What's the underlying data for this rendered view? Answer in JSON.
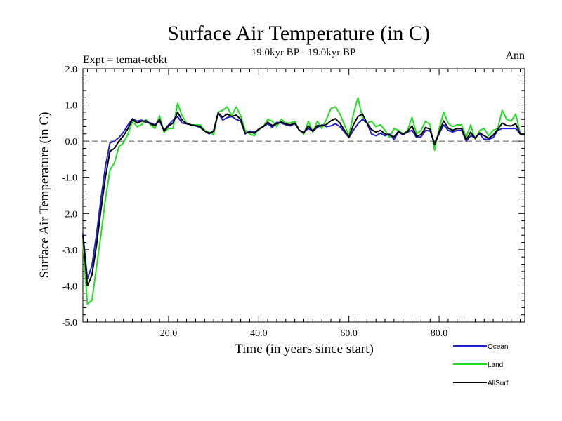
{
  "chart_data": {
    "type": "line",
    "title": "Surface Air Temperature (in C)",
    "subtitle": "19.0kyr BP - 19.0kyr BP",
    "left_label": "Expt = temat-tebkt",
    "right_label": "Ann",
    "xlabel": "Time (in years since start)",
    "ylabel": "Surface Air Temperature (in C)",
    "xlim": [
      1,
      99
    ],
    "ylim": [
      -5.0,
      2.0
    ],
    "x_ticks": [
      20,
      40,
      60,
      80
    ],
    "x_tick_labels": [
      "20.0",
      "40.0",
      "60.0",
      "80.0"
    ],
    "y_ticks": [
      -5,
      -4,
      -3,
      -2,
      -1,
      0,
      1,
      2
    ],
    "y_tick_labels": [
      "-5.0",
      "-4.0",
      "-3.0",
      "-2.0",
      "-1.0",
      "0.0",
      "1.0",
      "2.0"
    ],
    "reference_line": 0.0,
    "x": [
      1,
      2,
      3,
      4,
      5,
      6,
      7,
      8,
      9,
      10,
      11,
      12,
      13,
      14,
      15,
      16,
      17,
      18,
      19,
      20,
      21,
      22,
      23,
      24,
      25,
      26,
      27,
      28,
      29,
      30,
      31,
      32,
      33,
      34,
      35,
      36,
      37,
      38,
      39,
      40,
      41,
      42,
      43,
      44,
      45,
      46,
      47,
      48,
      49,
      50,
      51,
      52,
      53,
      54,
      55,
      56,
      57,
      58,
      59,
      60,
      61,
      62,
      63,
      64,
      65,
      66,
      67,
      68,
      69,
      70,
      71,
      72,
      73,
      74,
      75,
      76,
      77,
      78,
      79,
      80,
      81,
      82,
      83,
      84,
      85,
      86,
      87,
      88,
      89,
      90,
      91,
      92,
      93,
      94,
      95,
      96,
      97,
      98,
      99
    ],
    "series": [
      {
        "name": "Ocean",
        "color": "#2020d0",
        "values": [
          -2.55,
          -3.8,
          -3.45,
          -2.6,
          -1.6,
          -0.7,
          -0.05,
          0.0,
          0.1,
          0.25,
          0.45,
          0.62,
          0.55,
          0.58,
          0.52,
          0.5,
          0.45,
          0.55,
          0.3,
          0.45,
          0.58,
          0.68,
          0.5,
          0.48,
          0.45,
          0.42,
          0.38,
          0.28,
          0.2,
          0.3,
          0.78,
          0.58,
          0.65,
          0.68,
          0.6,
          0.55,
          0.2,
          0.28,
          0.25,
          0.32,
          0.4,
          0.48,
          0.38,
          0.52,
          0.5,
          0.45,
          0.42,
          0.48,
          0.3,
          0.25,
          0.35,
          0.28,
          0.38,
          0.45,
          0.4,
          0.42,
          0.48,
          0.4,
          0.25,
          0.1,
          0.3,
          0.48,
          0.6,
          0.5,
          0.2,
          0.15,
          0.22,
          0.15,
          0.2,
          0.05,
          0.25,
          0.18,
          0.25,
          0.3,
          0.1,
          0.12,
          0.3,
          0.28,
          -0.05,
          0.2,
          0.45,
          0.3,
          0.25,
          0.3,
          0.3,
          0.0,
          0.15,
          0.1,
          0.2,
          0.05,
          0.05,
          0.1,
          0.3,
          0.35,
          0.35,
          0.35,
          0.35,
          0.2,
          0.18
        ]
      },
      {
        "name": "Land",
        "color": "#20e020",
        "values": [
          -2.8,
          -4.5,
          -4.4,
          -3.5,
          -2.6,
          -1.6,
          -0.8,
          -0.6,
          -0.15,
          -0.05,
          0.2,
          0.55,
          0.4,
          0.45,
          0.6,
          0.45,
          0.35,
          0.7,
          0.25,
          0.35,
          0.35,
          1.05,
          0.7,
          0.5,
          0.45,
          0.45,
          0.45,
          0.3,
          0.25,
          0.18,
          0.8,
          0.85,
          0.95,
          0.7,
          0.95,
          0.7,
          0.3,
          0.2,
          0.15,
          0.35,
          0.4,
          0.6,
          0.55,
          0.4,
          0.6,
          0.5,
          0.5,
          0.55,
          0.3,
          0.2,
          0.55,
          0.25,
          0.55,
          0.35,
          0.6,
          0.9,
          0.95,
          0.75,
          0.45,
          0.15,
          0.75,
          1.2,
          0.65,
          0.5,
          0.55,
          0.4,
          0.45,
          0.3,
          0.1,
          0.35,
          0.3,
          0.2,
          0.3,
          0.65,
          0.2,
          0.3,
          0.55,
          0.45,
          -0.25,
          0.35,
          0.8,
          0.5,
          0.4,
          0.45,
          0.45,
          0.1,
          0.45,
          0.05,
          0.3,
          0.35,
          0.15,
          0.3,
          0.35,
          0.85,
          0.6,
          0.55,
          0.75,
          0.2,
          0.2
        ]
      },
      {
        "name": "AllSurf",
        "color": "#000000",
        "values": [
          -2.6,
          -4.0,
          -3.7,
          -2.9,
          -1.9,
          -1.0,
          -0.28,
          -0.2,
          0.0,
          0.15,
          0.35,
          0.6,
          0.5,
          0.55,
          0.56,
          0.48,
          0.42,
          0.6,
          0.28,
          0.42,
          0.5,
          0.8,
          0.58,
          0.48,
          0.45,
          0.43,
          0.4,
          0.28,
          0.22,
          0.27,
          0.78,
          0.66,
          0.75,
          0.68,
          0.72,
          0.6,
          0.22,
          0.25,
          0.22,
          0.33,
          0.4,
          0.52,
          0.43,
          0.48,
          0.53,
          0.47,
          0.45,
          0.5,
          0.3,
          0.23,
          0.42,
          0.27,
          0.43,
          0.42,
          0.46,
          0.56,
          0.62,
          0.5,
          0.3,
          0.11,
          0.45,
          0.68,
          0.75,
          0.5,
          0.32,
          0.25,
          0.3,
          0.2,
          0.17,
          0.12,
          0.27,
          0.19,
          0.27,
          0.42,
          0.13,
          0.18,
          0.38,
          0.33,
          -0.1,
          0.25,
          0.56,
          0.36,
          0.3,
          0.35,
          0.35,
          0.03,
          0.25,
          0.08,
          0.23,
          0.15,
          0.08,
          0.17,
          0.32,
          0.5,
          0.43,
          0.42,
          0.48,
          0.2,
          0.19
        ]
      }
    ],
    "legend": [
      "Ocean",
      "Land",
      "AllSurf"
    ]
  }
}
